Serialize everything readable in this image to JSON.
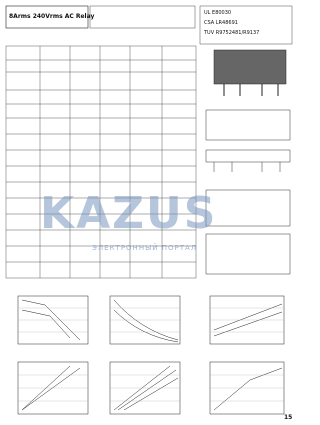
{
  "header": {
    "title": "8Arms 240Vrms AC Relay",
    "certifications": [
      "UL E80030",
      "CSA LR48691",
      "TUV R9752481/R9137"
    ]
  },
  "watermark": {
    "logo": "KAZUS",
    "subtitle": "ЭЛЕКТРОННЫЙ ПОРТАЛ"
  },
  "page_number": "15"
}
